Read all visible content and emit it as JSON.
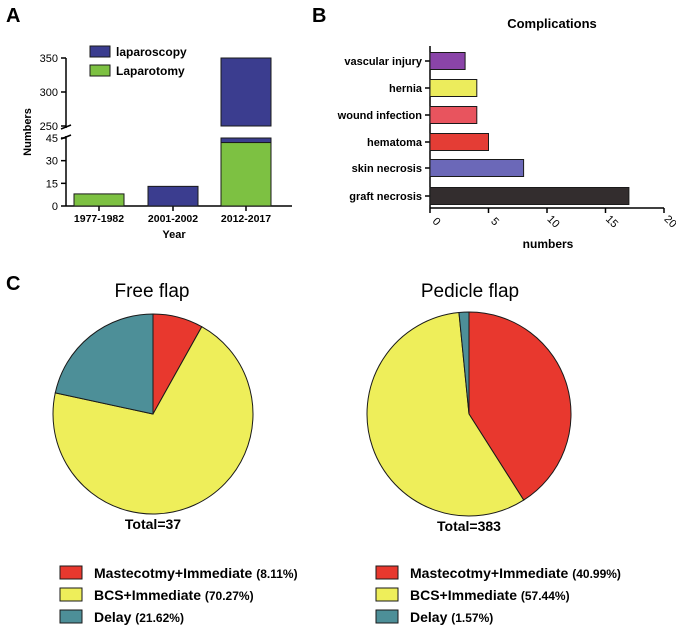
{
  "panels": {
    "a": "A",
    "b": "B",
    "c": "C"
  },
  "chart_data": [
    {
      "id": "A",
      "type": "bar",
      "stacked": true,
      "broken_axis": true,
      "categories": [
        "1977-1982",
        "2001-2002",
        "2012-2017"
      ],
      "series": [
        {
          "name": "laparoscopy",
          "color": "#3b3d8f",
          "values": [
            0,
            13,
            308
          ]
        },
        {
          "name": "Laparotomy",
          "color": "#7dc142",
          "values": [
            8,
            0,
            42
          ]
        }
      ],
      "xlabel": "Year",
      "ylabel": "Numbers",
      "y_segments": [
        {
          "range": [
            0,
            45
          ],
          "ticks": [
            0,
            15,
            30,
            45
          ]
        },
        {
          "range": [
            250,
            350
          ],
          "ticks": [
            250,
            300,
            350
          ]
        }
      ],
      "legend_position": "top-left"
    },
    {
      "id": "B",
      "type": "bar",
      "orientation": "horizontal",
      "title": "Complications",
      "categories": [
        "vascular injury",
        "hernia",
        "wound infection",
        "hematoma",
        "skin necrosis",
        "graft necrosis"
      ],
      "values": [
        3,
        4,
        4,
        5,
        8,
        17
      ],
      "colors": [
        "#8a44a8",
        "#ecec5c",
        "#e8545e",
        "#e43d35",
        "#6b68b8",
        "#332d2e"
      ],
      "xlabel": "numbers",
      "xlim": [
        0,
        20
      ],
      "xticks": [
        0,
        5,
        10,
        15,
        20
      ]
    },
    {
      "id": "C1",
      "type": "pie",
      "title": "Free flap",
      "total_label": "Total=37",
      "slices": [
        {
          "label": "Mastecotmy+Immediate",
          "pct_label": "(8.11%)",
          "value": 8.11,
          "color": "#e8382e"
        },
        {
          "label": "BCS+Immediate",
          "pct_label": "(70.27%)",
          "value": 70.27,
          "color": "#eeee5a"
        },
        {
          "label": "Delay",
          "pct_label": "(21.62%)",
          "value": 21.62,
          "color": "#4d8f98"
        }
      ]
    },
    {
      "id": "C2",
      "type": "pie",
      "title": "Pedicle flap",
      "total_label": "Total=383",
      "slices": [
        {
          "label": "Mastecotmy+Immediate",
          "pct_label": "(40.99%)",
          "value": 40.99,
          "color": "#e8382e"
        },
        {
          "label": "BCS+Immediate",
          "pct_label": "(57.44%)",
          "value": 57.44,
          "color": "#eeee5a"
        },
        {
          "label": "Delay",
          "pct_label": "(1.57%)",
          "value": 1.57,
          "color": "#4d8f98"
        }
      ]
    }
  ]
}
